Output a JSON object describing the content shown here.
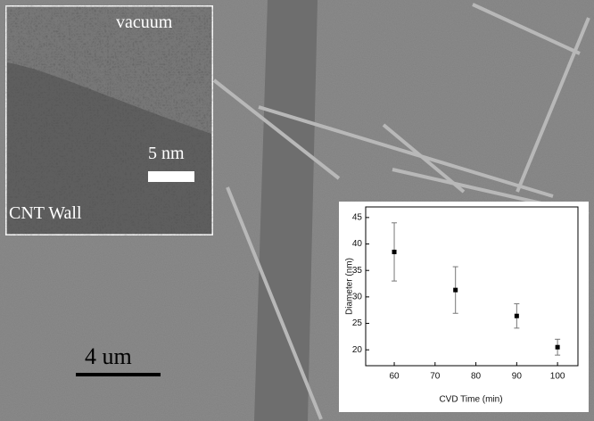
{
  "micrograph": {
    "inset_top_label": "vacuum",
    "inset_scale_label": "5 nm",
    "inset_bottom_label": "CNT Wall",
    "scale_bar_label": "4 um"
  },
  "chart_data": {
    "type": "scatter",
    "x_label": "CVD Time (min)",
    "y_label": "Diameter (nm)",
    "x": [
      60,
      75,
      90,
      100
    ],
    "values": [
      38.5,
      31.3,
      26.4,
      20.5
    ],
    "errors": [
      5.5,
      4.4,
      2.3,
      1.5
    ],
    "color": "#000000",
    "xlim": [
      53,
      105
    ],
    "xticks": [
      60,
      70,
      80,
      90,
      100
    ],
    "ylim": [
      17,
      47
    ],
    "yticks": [
      20,
      25,
      30,
      35,
      40,
      45
    ]
  }
}
